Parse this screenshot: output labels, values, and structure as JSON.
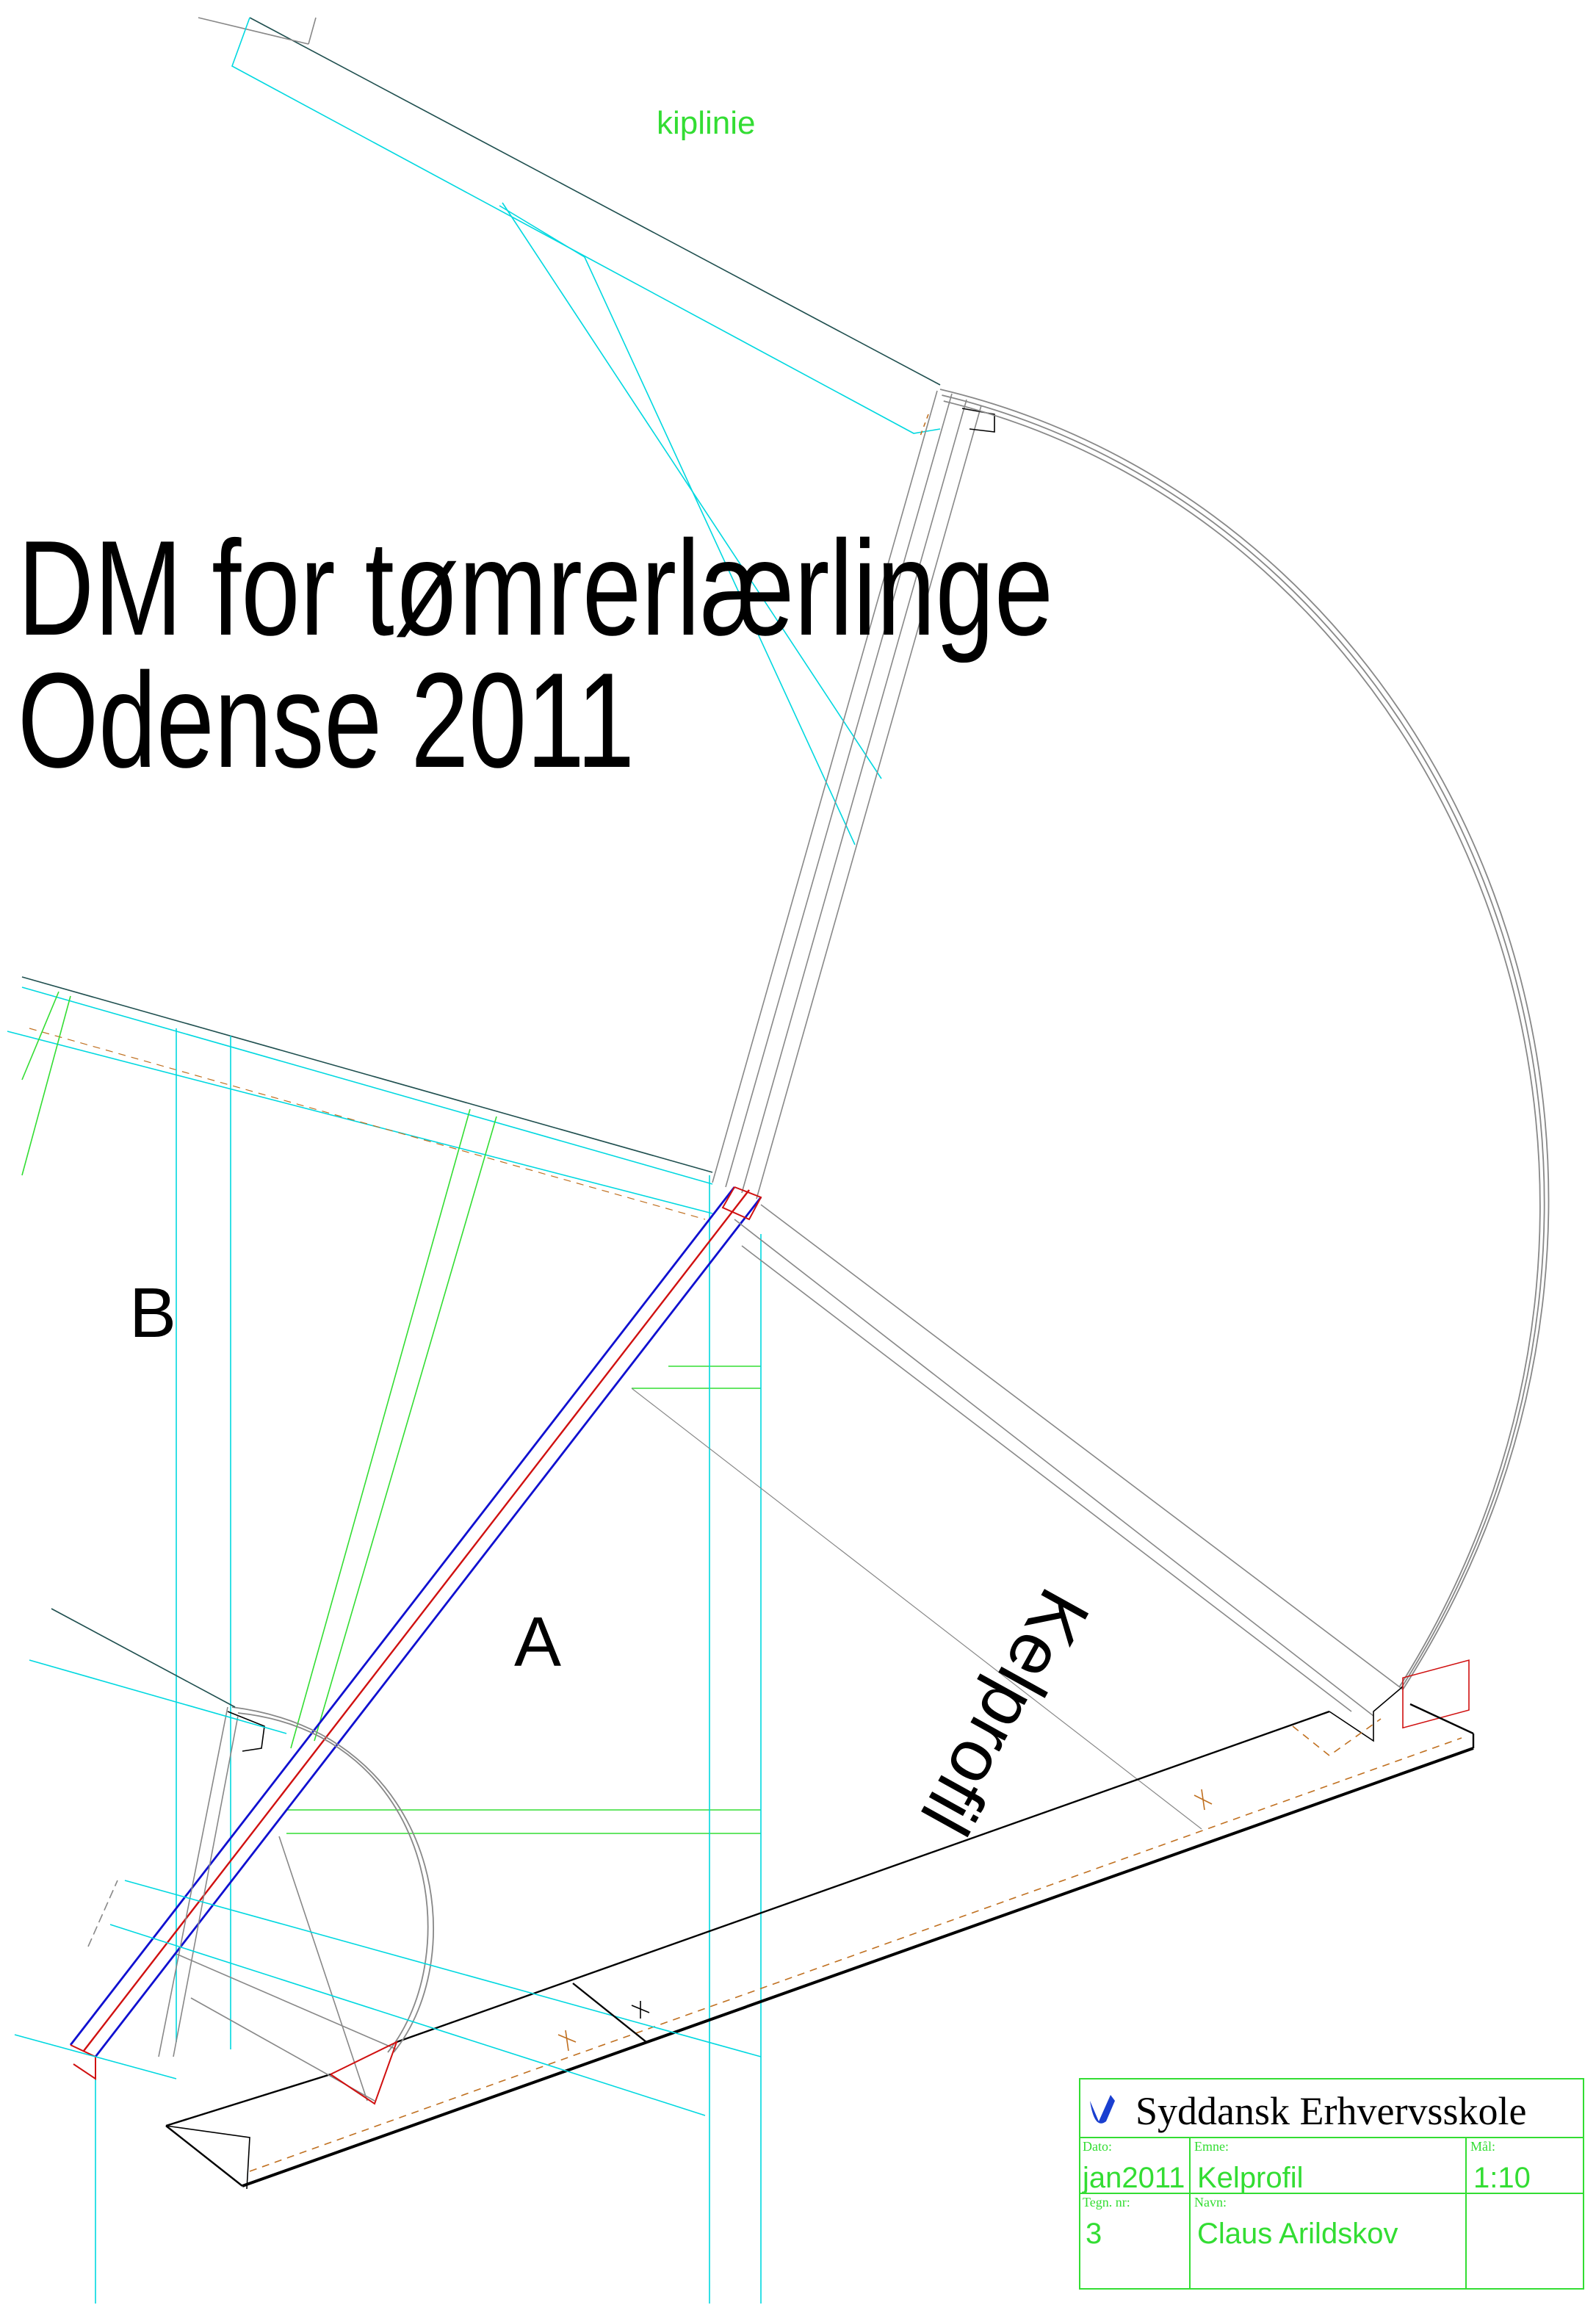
{
  "drawing": {
    "note": "kiplinie",
    "heading": [
      "DM for tømrerlærlinge",
      "Odense 2011"
    ],
    "labels": {
      "b": "B",
      "a": "A",
      "profile": "Kelprofil"
    },
    "title_block": {
      "school": "Syddansk Erhvervsskole",
      "date_label": "Dato:",
      "date": "jan2011",
      "subject_label": "Emne:",
      "subject": "Kelprofil",
      "scale_label": "Mål:",
      "scale": "1:10",
      "number_label": "Tegn. nr:",
      "number": "3",
      "name_label": "Navn:",
      "name": "Claus Arildskov"
    }
  }
}
